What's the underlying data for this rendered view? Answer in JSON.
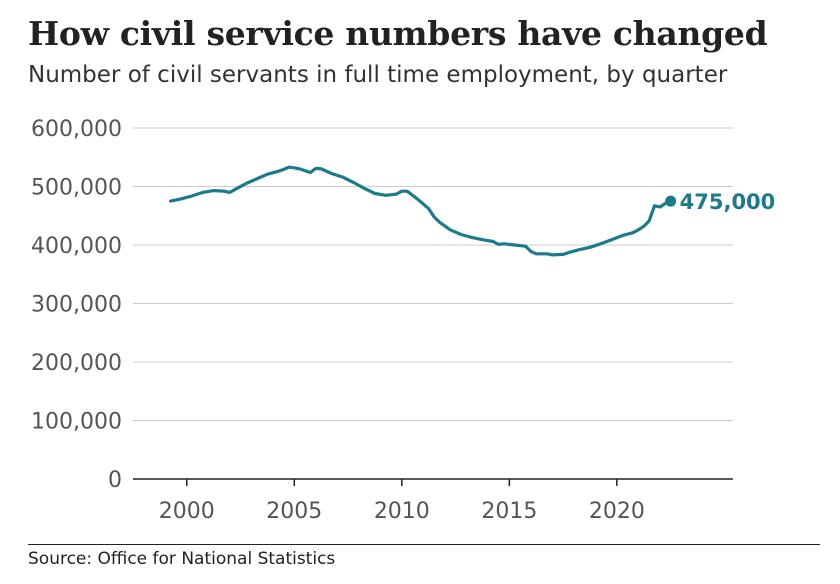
{
  "header": {
    "title": "How civil service numbers have changed",
    "subtitle": "Number of civil servants in full time employment, by quarter"
  },
  "footer": {
    "source": "Source: Office for National Statistics"
  },
  "colors": {
    "line": "#1b7a8c",
    "grid": "#cccccc",
    "axis": "#222222",
    "tick_text": "#555555"
  },
  "chart_data": {
    "type": "line",
    "title": "How civil service numbers have changed",
    "subtitle": "Number of civil servants in full time employment, by quarter",
    "xlabel": "",
    "ylabel": "",
    "xlim": [
      1997.5,
      2025.4
    ],
    "ylim": [
      0,
      600000
    ],
    "x_ticks": [
      2000,
      2005,
      2010,
      2015,
      2020
    ],
    "y_ticks": [
      0,
      100000,
      200000,
      300000,
      400000,
      500000,
      600000
    ],
    "y_tick_labels": [
      "0",
      "100,000",
      "200,000",
      "300,000",
      "400,000",
      "500,000",
      "600,000"
    ],
    "grid": true,
    "end_label": "475,000",
    "series": [
      {
        "values": [
          [
            1999.25,
            475000
          ],
          [
            1999.75,
            479000
          ],
          [
            2000.25,
            484000
          ],
          [
            2000.75,
            490000
          ],
          [
            2001.25,
            493000
          ],
          [
            2001.75,
            492000
          ],
          [
            2002.0,
            490000
          ],
          [
            2002.25,
            495000
          ],
          [
            2002.5,
            500000
          ],
          [
            2002.75,
            505000
          ],
          [
            2003.25,
            513000
          ],
          [
            2003.75,
            521000
          ],
          [
            2004.25,
            526000
          ],
          [
            2004.5,
            529000
          ],
          [
            2004.75,
            533000
          ],
          [
            2005.0,
            532000
          ],
          [
            2005.25,
            530000
          ],
          [
            2005.75,
            524000
          ],
          [
            2006.0,
            531000
          ],
          [
            2006.25,
            530000
          ],
          [
            2006.75,
            522000
          ],
          [
            2007.25,
            516000
          ],
          [
            2007.75,
            507000
          ],
          [
            2008.25,
            497000
          ],
          [
            2008.75,
            488000
          ],
          [
            2009.25,
            485000
          ],
          [
            2009.75,
            487000
          ],
          [
            2010.0,
            492000
          ],
          [
            2010.25,
            492000
          ],
          [
            2010.5,
            485000
          ],
          [
            2010.75,
            478000
          ],
          [
            2011.0,
            470000
          ],
          [
            2011.25,
            462000
          ],
          [
            2011.5,
            448000
          ],
          [
            2011.75,
            439000
          ],
          [
            2012.25,
            426000
          ],
          [
            2012.75,
            418000
          ],
          [
            2013.25,
            413000
          ],
          [
            2013.75,
            409000
          ],
          [
            2014.25,
            406000
          ],
          [
            2014.5,
            401000
          ],
          [
            2014.75,
            402000
          ],
          [
            2015.25,
            400000
          ],
          [
            2015.75,
            398000
          ],
          [
            2016.0,
            389000
          ],
          [
            2016.25,
            385000
          ],
          [
            2016.75,
            385000
          ],
          [
            2017.0,
            383000
          ],
          [
            2017.5,
            384000
          ],
          [
            2017.75,
            387000
          ],
          [
            2018.25,
            392000
          ],
          [
            2018.75,
            396000
          ],
          [
            2019.25,
            402000
          ],
          [
            2019.75,
            409000
          ],
          [
            2020.25,
            416000
          ],
          [
            2020.75,
            421000
          ],
          [
            2021.0,
            426000
          ],
          [
            2021.25,
            432000
          ],
          [
            2021.5,
            441000
          ],
          [
            2021.75,
            467000
          ],
          [
            2022.0,
            465000
          ],
          [
            2022.25,
            471000
          ],
          [
            2022.5,
            475000
          ]
        ]
      }
    ]
  }
}
